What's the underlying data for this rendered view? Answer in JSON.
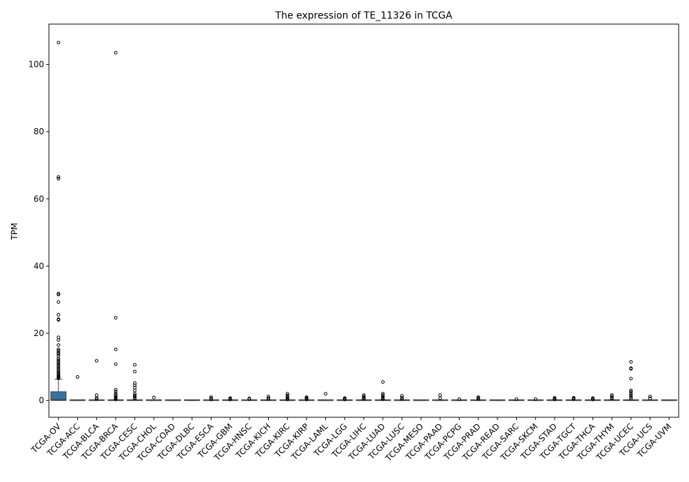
{
  "chart_data": {
    "type": "box",
    "title": "The expression of TE_11326 in TCGA",
    "xlabel": "",
    "ylabel": "TPM",
    "ylim": [
      -5,
      112
    ],
    "yticks": [
      0,
      20,
      40,
      60,
      80,
      100
    ],
    "grid": false,
    "legend": "none",
    "box_color": "#3274a1",
    "categories": [
      "TCGA-OV",
      "TCGA-ACC",
      "TCGA-BLCA",
      "TCGA-BRCA",
      "TCGA-CESC",
      "TCGA-CHOL",
      "TCGA-COAD",
      "TCGA-DLBC",
      "TCGA-ESCA",
      "TCGA-GBM",
      "TCGA-HNSC",
      "TCGA-KICH",
      "TCGA-KIRC",
      "TCGA-KIRP",
      "TCGA-LAML",
      "TCGA-LGG",
      "TCGA-LIHC",
      "TCGA-LUAD",
      "TCGA-LUSC",
      "TCGA-MESO",
      "TCGA-PAAD",
      "TCGA-PCPG",
      "TCGA-PRAD",
      "TCGA-READ",
      "TCGA-SARC",
      "TCGA-SKCM",
      "TCGA-STAD",
      "TCGA-TGCT",
      "TCGA-THCA",
      "TCGA-THYM",
      "TCGA-UCEC",
      "TCGA-UCS",
      "TCGA-UVM"
    ],
    "boxes": [
      {
        "q1": 0.0,
        "median": 0.3,
        "q3": 2.6,
        "whislo": 0,
        "whishi": 6.3,
        "fliers": [
          106.5,
          66.5,
          66.0,
          31.8,
          31.5,
          29.3,
          25.5,
          24.2,
          24.0,
          18.8,
          18.0,
          16.5,
          15.2,
          14.8,
          14.2,
          13.8,
          13.2,
          12.5,
          12.0,
          11.5,
          11.0,
          10.5,
          10.0,
          9.5,
          9.0,
          8.5,
          8.0,
          7.8,
          7.5,
          7.2,
          7.0,
          6.8,
          6.6
        ]
      },
      {
        "q1": 0,
        "median": 0,
        "q3": 0,
        "whislo": 0,
        "whishi": 0,
        "fliers": [
          7.0
        ]
      },
      {
        "q1": 0,
        "median": 0,
        "q3": 0.05,
        "whislo": 0,
        "whishi": 0.1,
        "fliers": [
          11.8,
          1.6,
          0.8,
          0.4
        ]
      },
      {
        "q1": 0,
        "median": 0,
        "q3": 0.1,
        "whislo": 0,
        "whishi": 0.2,
        "fliers": [
          103.5,
          24.6,
          15.2,
          10.8,
          3.2,
          2.6,
          2.0,
          1.6,
          1.2,
          0.9,
          0.7,
          0.5,
          0.3
        ]
      },
      {
        "q1": 0,
        "median": 0,
        "q3": 0.1,
        "whislo": 0,
        "whishi": 0.2,
        "fliers": [
          10.6,
          8.6,
          5.2,
          4.5,
          3.8,
          3.0,
          2.0,
          1.5,
          1.2,
          0.9,
          0.6
        ]
      },
      {
        "q1": 0,
        "median": 0,
        "q3": 0,
        "whislo": 0,
        "whishi": 0,
        "fliers": [
          0.9
        ]
      },
      {
        "q1": 0,
        "median": 0,
        "q3": 0,
        "whislo": 0,
        "whishi": 0,
        "fliers": []
      },
      {
        "q1": 0,
        "median": 0,
        "q3": 0,
        "whislo": 0,
        "whishi": 0,
        "fliers": []
      },
      {
        "q1": 0,
        "median": 0,
        "q3": 0.05,
        "whislo": 0,
        "whishi": 0.1,
        "fliers": [
          1.0,
          0.6,
          0.3
        ]
      },
      {
        "q1": 0,
        "median": 0,
        "q3": 0.05,
        "whislo": 0,
        "whishi": 0.1,
        "fliers": [
          0.7,
          0.5,
          0.3
        ]
      },
      {
        "q1": 0,
        "median": 0,
        "q3": 0.05,
        "whislo": 0,
        "whishi": 0.1,
        "fliers": [
          0.6,
          0.4
        ]
      },
      {
        "q1": 0,
        "median": 0,
        "q3": 0.05,
        "whislo": 0,
        "whishi": 0.1,
        "fliers": [
          1.2,
          0.7,
          0.4
        ]
      },
      {
        "q1": 0,
        "median": 0,
        "q3": 0.1,
        "whislo": 0,
        "whishi": 0.2,
        "fliers": [
          2.0,
          1.5,
          1.1,
          0.8,
          0.5,
          0.3
        ]
      },
      {
        "q1": 0,
        "median": 0,
        "q3": 0.05,
        "whislo": 0,
        "whishi": 0.1,
        "fliers": [
          1.0,
          0.7,
          0.5,
          0.3
        ]
      },
      {
        "q1": 0,
        "median": 0,
        "q3": 0,
        "whislo": 0,
        "whishi": 0,
        "fliers": [
          2.0
        ]
      },
      {
        "q1": 0,
        "median": 0,
        "q3": 0.05,
        "whislo": 0,
        "whishi": 0.1,
        "fliers": [
          0.7,
          0.5,
          0.3
        ]
      },
      {
        "q1": 0,
        "median": 0,
        "q3": 0.1,
        "whislo": 0,
        "whishi": 0.2,
        "fliers": [
          1.6,
          1.2,
          0.9,
          0.6,
          0.4
        ]
      },
      {
        "q1": 0,
        "median": 0,
        "q3": 0.1,
        "whislo": 0,
        "whishi": 0.2,
        "fliers": [
          5.5,
          2.0,
          1.6,
          1.2,
          0.9,
          0.6,
          0.4
        ]
      },
      {
        "q1": 0,
        "median": 0,
        "q3": 0.05,
        "whislo": 0,
        "whishi": 0.1,
        "fliers": [
          1.4,
          0.8,
          0.4
        ]
      },
      {
        "q1": 0,
        "median": 0,
        "q3": 0,
        "whislo": 0,
        "whishi": 0,
        "fliers": []
      },
      {
        "q1": 0,
        "median": 0,
        "q3": 0,
        "whislo": 0,
        "whishi": 0,
        "fliers": [
          1.6,
          0.7
        ]
      },
      {
        "q1": 0,
        "median": 0,
        "q3": 0,
        "whislo": 0,
        "whishi": 0,
        "fliers": [
          0.4
        ]
      },
      {
        "q1": 0,
        "median": 0,
        "q3": 0.05,
        "whislo": 0,
        "whishi": 0.1,
        "fliers": [
          1.0,
          0.7,
          0.4
        ]
      },
      {
        "q1": 0,
        "median": 0,
        "q3": 0,
        "whislo": 0,
        "whishi": 0,
        "fliers": []
      },
      {
        "q1": 0,
        "median": 0,
        "q3": 0,
        "whislo": 0,
        "whishi": 0,
        "fliers": [
          0.4
        ]
      },
      {
        "q1": 0,
        "median": 0,
        "q3": 0,
        "whislo": 0,
        "whishi": 0,
        "fliers": [
          0.4
        ]
      },
      {
        "q1": 0,
        "median": 0,
        "q3": 0.05,
        "whislo": 0,
        "whishi": 0.1,
        "fliers": [
          0.8,
          0.5,
          0.3
        ]
      },
      {
        "q1": 0,
        "median": 0,
        "q3": 0.05,
        "whislo": 0,
        "whishi": 0.1,
        "fliers": [
          0.8,
          0.6,
          0.4
        ]
      },
      {
        "q1": 0,
        "median": 0,
        "q3": 0.05,
        "whislo": 0,
        "whishi": 0.1,
        "fliers": [
          0.7,
          0.5,
          0.3
        ]
      },
      {
        "q1": 0,
        "median": 0,
        "q3": 0.1,
        "whislo": 0,
        "whishi": 0.2,
        "fliers": [
          1.6,
          1.2,
          0.8,
          0.5
        ]
      },
      {
        "q1": 0,
        "median": 0,
        "q3": 0.1,
        "whislo": 0,
        "whishi": 0.2,
        "fliers": [
          11.5,
          9.6,
          9.4,
          6.5,
          3.0,
          2.6,
          2.0,
          1.5,
          1.0,
          0.6
        ]
      },
      {
        "q1": 0,
        "median": 0,
        "q3": 0.05,
        "whislo": 0,
        "whishi": 0.1,
        "fliers": [
          1.2,
          0.6
        ]
      },
      {
        "q1": 0,
        "median": 0,
        "q3": 0,
        "whislo": 0,
        "whishi": 0,
        "fliers": []
      }
    ]
  }
}
